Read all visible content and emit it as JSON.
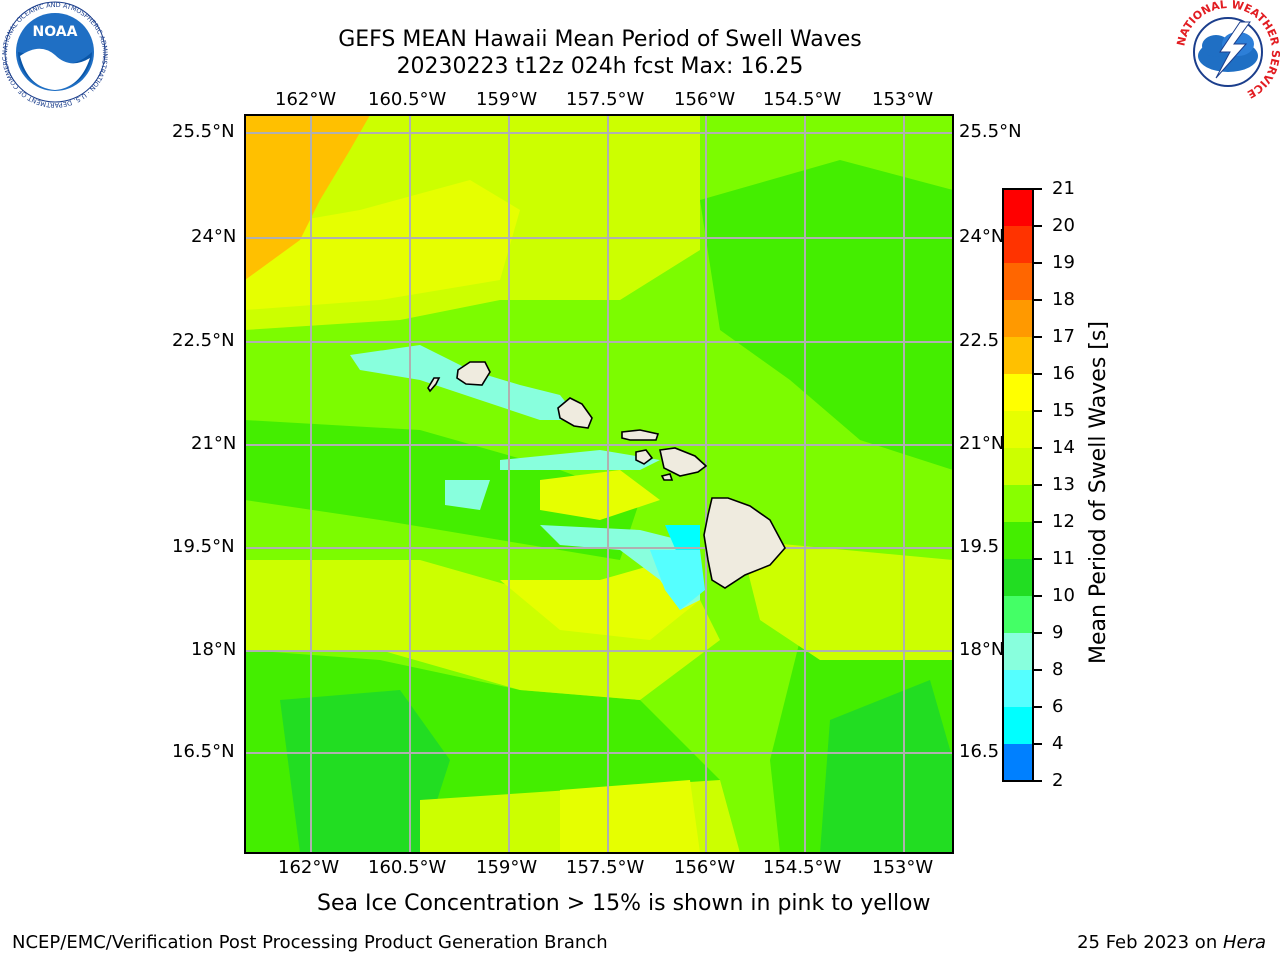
{
  "title": {
    "line1": "GEFS MEAN Hawaii Mean Period of Swell Waves",
    "line2": "20230223 t12z 024h fcst   Max: 16.25"
  },
  "map": {
    "lon_labels": [
      "162°W",
      "160.5°W",
      "159°W",
      "157.5°W",
      "156°W",
      "154.5°W",
      "153°W"
    ],
    "lat_labels_left": [
      "25.5°N",
      "24°N",
      "22.5°N",
      "21°N",
      "19.5°N",
      "18°N",
      "16.5°N"
    ],
    "lat_labels_right": [
      "25.5°N",
      "24°N",
      "22.5",
      "21°N",
      "19.5",
      "18°N",
      "16.5"
    ],
    "background_color": "#7cfc00"
  },
  "colorbar": {
    "label": "Mean Period of Swell Waves [s]",
    "ticks": [
      "21",
      "20",
      "19",
      "18",
      "17",
      "16",
      "15",
      "14",
      "13",
      "12",
      "11",
      "10",
      "9",
      "8",
      "6",
      "4",
      "2"
    ],
    "colors": [
      "#ff0000",
      "#ff3300",
      "#ff6600",
      "#ff9900",
      "#ffc000",
      "#ffff00",
      "#e6ff00",
      "#ccff00",
      "#88ff00",
      "#44ee00",
      "#22dd22",
      "#44ff66",
      "#88ffdd",
      "#55ffff",
      "#00ffff",
      "#0080ff",
      "#0000ff"
    ]
  },
  "note": "Sea Ice Concentration > 15% is shown in pink to yellow",
  "footer": {
    "left": "NCEP/EMC/Verification Post Processing Product Generation Branch",
    "date": "25 Feb 2023 on ",
    "host": "Hera"
  },
  "logos": {
    "noaa_text": "NOAA",
    "noaa_ring": "NATIONAL OCEANIC AND ATMOSPHERIC ADMINISTRATION · U.S. DEPARTMENT OF COMMERCE",
    "nws_ring": "NATIONAL WEATHER SERVICE"
  }
}
